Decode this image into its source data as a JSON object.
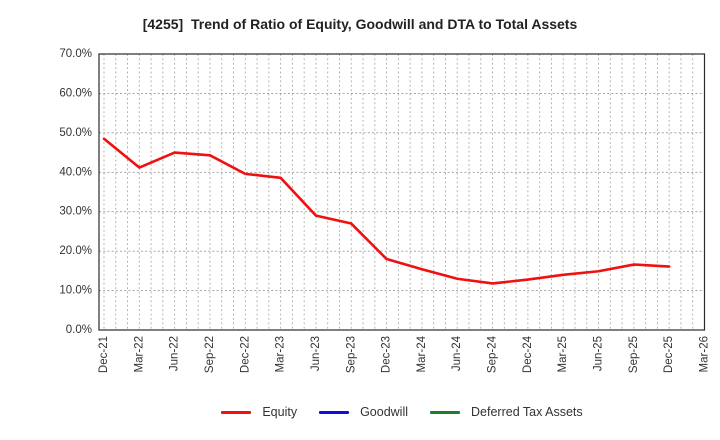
{
  "chart_data": {
    "type": "line",
    "title": "[4255]  Trend of Ratio of Equity, Goodwill and DTA to Total Assets",
    "ylabel": "",
    "xlabel": "",
    "ylim": [
      0,
      70
    ],
    "y_tick_step": 10,
    "y_tick_labels": [
      "0.0%",
      "10.0%",
      "20.0%",
      "30.0%",
      "40.0%",
      "50.0%",
      "60.0%",
      "70.0%"
    ],
    "x_tick_labels": [
      "Dec-21",
      "Mar-22",
      "Jun-22",
      "Sep-22",
      "Dec-22",
      "Mar-23",
      "Jun-23",
      "Sep-23",
      "Dec-23",
      "Mar-24",
      "Jun-24",
      "Sep-24",
      "Dec-24",
      "Mar-25",
      "Jun-25",
      "Sep-25",
      "Dec-25",
      "Mar-26"
    ],
    "grid": {
      "horizontal": "dashed every 10%",
      "vertical": "dotted monthly"
    },
    "legend_position": "bottom-center",
    "series": [
      {
        "name": "Equity",
        "color": "#f01010",
        "x": [
          "Dec-21",
          "Mar-22",
          "Jun-22",
          "Sep-22",
          "Dec-22",
          "Mar-23",
          "Jun-23",
          "Sep-23",
          "Dec-23",
          "Mar-24",
          "Jun-24",
          "Sep-24",
          "Dec-24",
          "Mar-25",
          "Jun-25",
          "Sep-25",
          "Dec-25"
        ],
        "values": [
          48.5,
          41.2,
          45.0,
          44.3,
          39.6,
          38.6,
          29.0,
          27.0,
          18.0,
          15.4,
          13.0,
          11.8,
          12.8,
          14.0,
          14.9,
          16.6,
          16.1
        ]
      },
      {
        "name": "Goodwill",
        "color": "#0d0de0",
        "x": [],
        "values": []
      },
      {
        "name": "Deferred Tax Assets",
        "color": "#1e7e2a",
        "x": [],
        "values": []
      }
    ]
  }
}
